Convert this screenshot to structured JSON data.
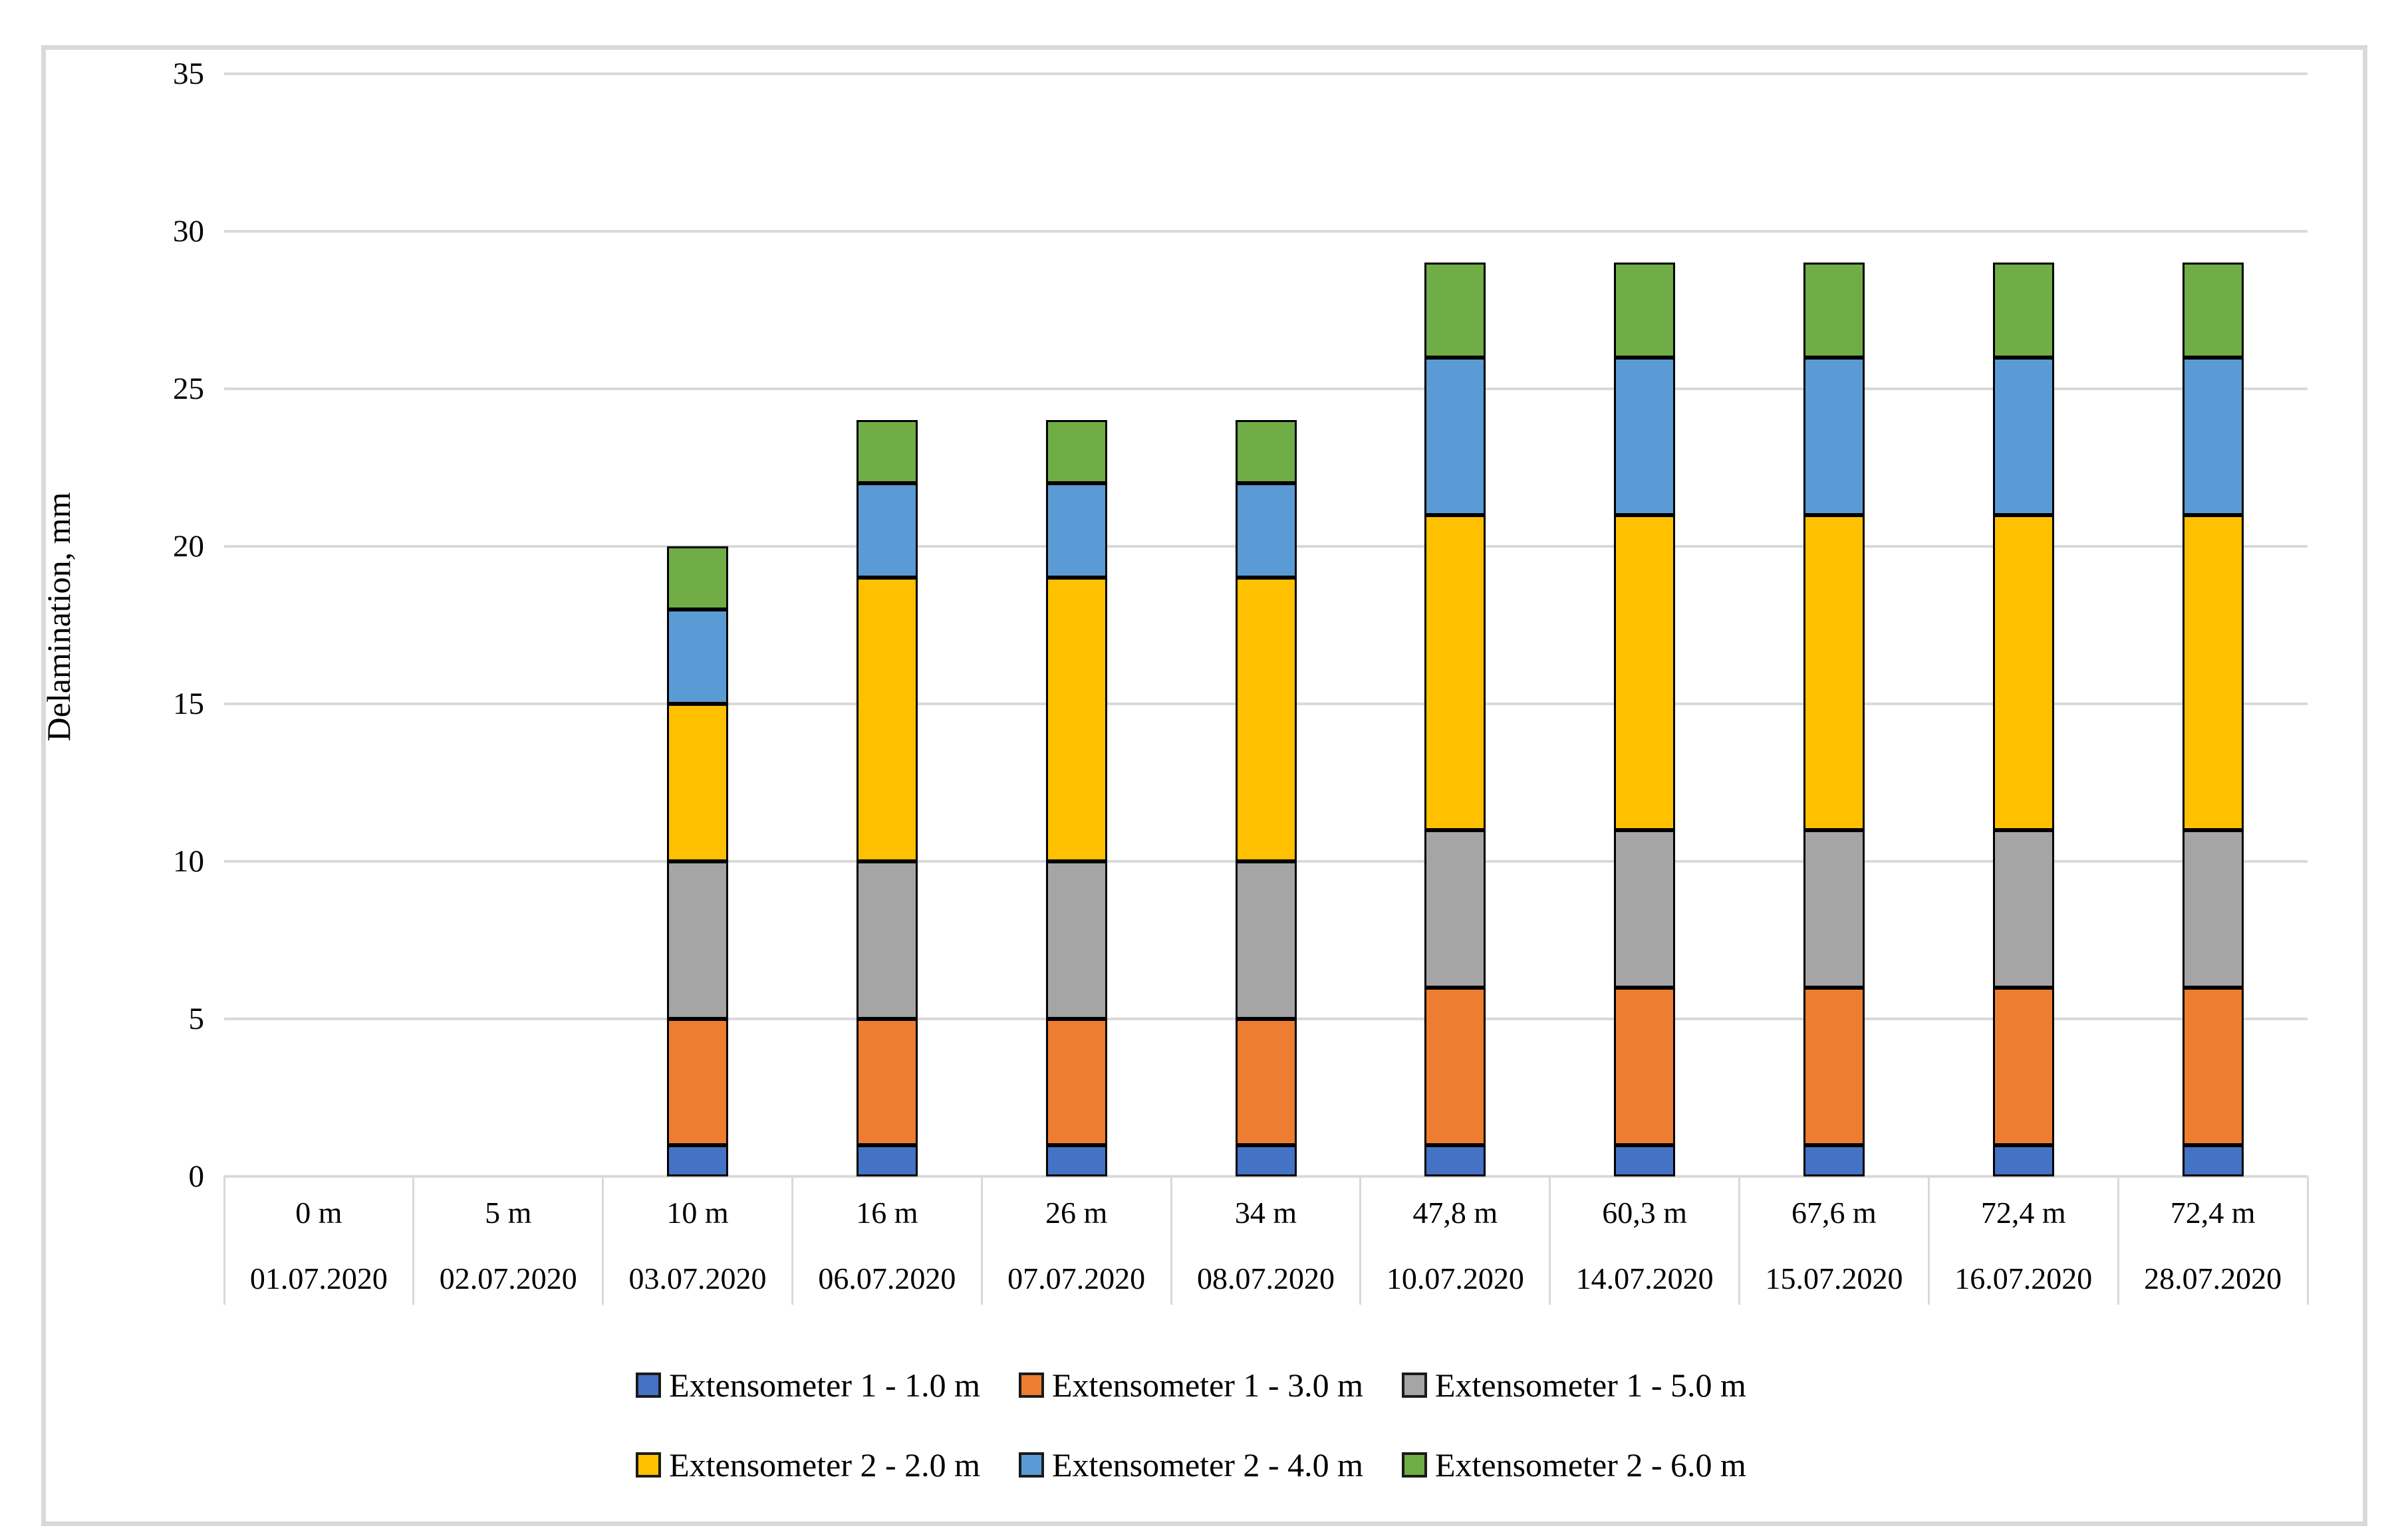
{
  "figure": {
    "background": "#ffffff",
    "border_color": "#d9d9d9",
    "grid_color": "#d9d9d9",
    "bar_border_color": "#000000",
    "text_color": "#000000"
  },
  "chart_data": {
    "type": "bar",
    "stacked": true,
    "title": "",
    "xlabel": "",
    "ylabel": "Delamination, mm",
    "ylim": [
      0,
      35
    ],
    "ytick_interval": 5,
    "yticks": [
      0,
      5,
      10,
      15,
      20,
      25,
      30,
      35
    ],
    "grid": true,
    "legend_position": "bottom",
    "legend_rows": [
      [
        0,
        1,
        2
      ],
      [
        3,
        4,
        5
      ]
    ],
    "categories": [
      {
        "distance": "0 m",
        "date": "01.07.2020"
      },
      {
        "distance": "5 m",
        "date": "02.07.2020"
      },
      {
        "distance": "10 m",
        "date": "03.07.2020"
      },
      {
        "distance": "16 m",
        "date": "06.07.2020"
      },
      {
        "distance": "26 m",
        "date": "07.07.2020"
      },
      {
        "distance": "34 m",
        "date": "08.07.2020"
      },
      {
        "distance": "47,8 m",
        "date": "10.07.2020"
      },
      {
        "distance": "60,3 m",
        "date": "14.07.2020"
      },
      {
        "distance": "67,6 m",
        "date": "15.07.2020"
      },
      {
        "distance": "72,4 m",
        "date": "16.07.2020"
      },
      {
        "distance": "72,4 m",
        "date": "28.07.2020"
      }
    ],
    "series": [
      {
        "name": "Extensometer 1 - 1.0 m",
        "color": "#4472C4",
        "values": [
          0,
          0,
          1,
          1,
          1,
          1,
          1,
          1,
          1,
          1,
          1
        ]
      },
      {
        "name": "Extensometer 1 - 3.0 m",
        "color": "#ED7D31",
        "values": [
          0,
          0,
          4,
          4,
          4,
          4,
          5,
          5,
          5,
          5,
          5
        ]
      },
      {
        "name": "Extensometer 1 - 5.0 m",
        "color": "#A5A5A5",
        "values": [
          0,
          0,
          5,
          5,
          5,
          5,
          5,
          5,
          5,
          5,
          5
        ]
      },
      {
        "name": "Extensometer 2 - 2.0 m",
        "color": "#FFC000",
        "values": [
          0,
          0,
          5,
          9,
          9,
          9,
          10,
          10,
          10,
          10,
          10
        ]
      },
      {
        "name": "Extensometer 2 - 4.0 m",
        "color": "#5B9BD5",
        "values": [
          0,
          0,
          3,
          3,
          3,
          3,
          5,
          5,
          5,
          5,
          5
        ]
      },
      {
        "name": "Extensometer 2 - 6.0 m",
        "color": "#70AD47",
        "values": [
          0,
          0,
          2,
          2,
          2,
          2,
          3,
          3,
          3,
          3,
          3
        ]
      }
    ],
    "stack_totals": [
      0,
      0,
      20,
      24,
      24,
      24,
      29,
      29,
      29,
      29,
      29
    ]
  }
}
